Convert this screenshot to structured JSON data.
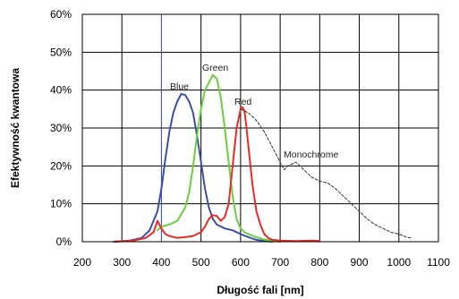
{
  "chart_data": {
    "type": "line",
    "title": "",
    "xlabel": "Długość fali [nm]",
    "ylabel": "Efektywność kwantowa",
    "xlim": [
      200,
      1100
    ],
    "ylim": [
      0,
      60
    ],
    "x_ticks": [
      "200",
      "300",
      "400",
      "500",
      "600",
      "700",
      "800",
      "900",
      "1000",
      "1100"
    ],
    "y_ticks": [
      "0%",
      "10%",
      "20%",
      "30%",
      "40%",
      "50%",
      "60%"
    ],
    "grid": true,
    "colors": {
      "Blue": "#3c4ea8",
      "Green": "#6ccf3c",
      "Red": "#ee2a24",
      "Monochrome": "#333333",
      "marker_line": "#4b59c0"
    },
    "series": [
      {
        "name": "Blue",
        "label": "Blue",
        "x": [
          280,
          320,
          350,
          370,
          390,
          400,
          410,
          420,
          430,
          440,
          450,
          460,
          470,
          480,
          490,
          500,
          510,
          520,
          530,
          540,
          560,
          580,
          600,
          620,
          640,
          660,
          680
        ],
        "y": [
          0,
          0.3,
          1,
          3,
          8,
          14,
          22,
          29,
          34,
          37,
          39,
          38.7,
          37,
          34,
          28,
          21,
          14,
          9,
          6,
          4.5,
          3.5,
          3,
          2,
          1.2,
          0.5,
          0.2,
          0
        ]
      },
      {
        "name": "Green",
        "label": "Green",
        "x": [
          390,
          400,
          420,
          440,
          460,
          470,
          480,
          490,
          500,
          510,
          520,
          530,
          540,
          550,
          560,
          570,
          580,
          590,
          600,
          610,
          620,
          640,
          660,
          680,
          700
        ],
        "y": [
          3,
          4,
          4.5,
          5.5,
          9,
          13,
          20,
          28,
          35,
          40,
          42,
          44,
          43,
          38,
          30,
          21,
          12,
          6,
          3.5,
          2.5,
          2,
          1.2,
          0.6,
          0.3,
          0
        ]
      },
      {
        "name": "Red",
        "label": "Red",
        "x": [
          280,
          330,
          360,
          380,
          390,
          400,
          410,
          420,
          440,
          460,
          480,
          500,
          510,
          520,
          530,
          540,
          550,
          560,
          570,
          580,
          590,
          600,
          605,
          610,
          615,
          620,
          630,
          640,
          650,
          660,
          670,
          680,
          700,
          740,
          780,
          800
        ],
        "y": [
          0,
          0.3,
          1,
          2.5,
          5.5,
          3.5,
          2,
          1.5,
          1,
          1.2,
          1.5,
          2.5,
          4,
          6,
          7,
          6.8,
          5.5,
          6.5,
          10,
          20,
          30,
          35,
          35.5,
          34.5,
          30,
          25,
          15,
          8,
          4.5,
          2,
          1,
          0.5,
          0.3,
          0.2,
          0.3,
          0.2
        ]
      },
      {
        "name": "Monochrome",
        "label": "Monochrome",
        "x": [
          600,
          620,
          640,
          660,
          680,
          700,
          710,
          720,
          740,
          760,
          780,
          800,
          820,
          840,
          860,
          880,
          900,
          920,
          940,
          960,
          980,
          1000,
          1020,
          1030
        ],
        "y": [
          35,
          34,
          32,
          29,
          25,
          21,
          19,
          20,
          21,
          19,
          17,
          16,
          15.5,
          14,
          12,
          10,
          8,
          6,
          4.5,
          3.5,
          2.5,
          2,
          1.2,
          1
        ]
      }
    ],
    "vertical_marker_x": 400
  }
}
